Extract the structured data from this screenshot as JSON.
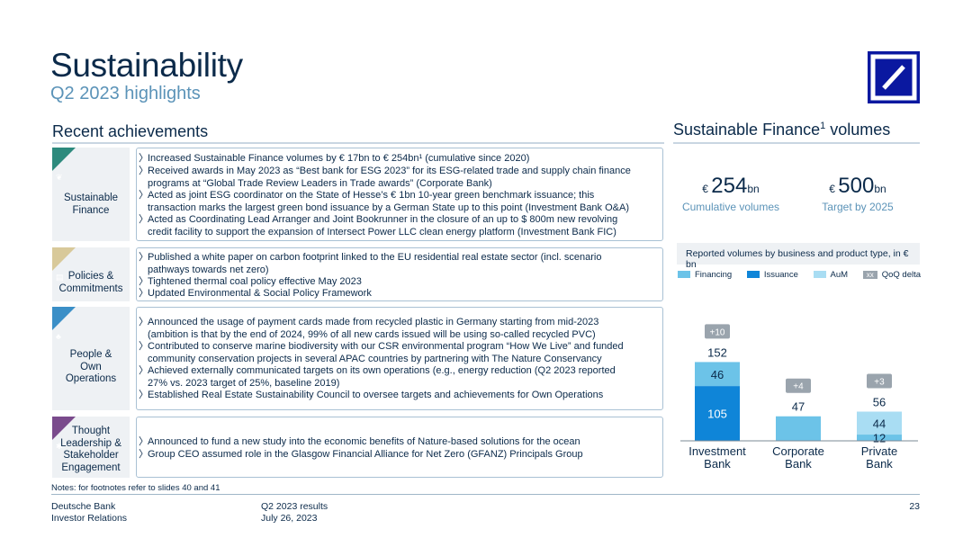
{
  "header": {
    "title": "Sustainability",
    "subtitle": "Q2 2023 highlights"
  },
  "left": {
    "heading": "Recent achievements",
    "sections": [
      {
        "category": [
          "Sustainable",
          "Finance"
        ],
        "icon": "leaf-icon",
        "color": "#2d8a7d",
        "bullets": [
          [
            "Increased Sustainable Finance volumes by € 17bn to € 254bn¹ (cumulative since 2020)"
          ],
          [
            "Received awards in May 2023 as “Best bank for ESG 2023” for its ESG-related trade and supply chain finance",
            "programs at “Global Trade Review Leaders in Trade awards” (Corporate Bank)"
          ],
          [
            "Acted as joint ESG coordinator on the State of Hesse’s € 1bn 10-year green benchmark issuance; this",
            "transaction marks the largest green bond issuance by a German State up to this point (Investment Bank O&A)"
          ],
          [
            "Acted as Coordinating Lead Arranger and Joint Bookrunner in the closure of an up to $ 800m new revolving",
            "credit facility to support the expansion of Intersect Power LLC clean energy platform (Investment Bank FIC)"
          ]
        ]
      },
      {
        "category": [
          "Policies &",
          "Commitments"
        ],
        "icon": "document-icon",
        "color": "#d8c99a",
        "bullets": [
          [
            "Published a white paper on carbon footprint linked to the EU residential real estate sector (incl. scenario",
            "pathways towards net zero)"
          ],
          [
            "Tightened thermal coal policy effective May 2023"
          ],
          [
            "Updated Environmental & Social Policy Framework"
          ]
        ]
      },
      {
        "category": [
          "People &",
          "Own",
          "Operations"
        ],
        "icon": "people-icon",
        "color": "#3b8fc7",
        "bullets": [
          [
            "Announced the usage of payment cards made from recycled plastic in Germany starting from mid-2023",
            "(ambition is that by the end of 2024, 99% of all new cards issued will be using so-called recycled PVC)"
          ],
          [
            "Contributed to conserve marine biodiversity with our CSR environmental program “How We Live” and funded",
            "community conservation projects in several APAC countries by partnering with The Nature Conservancy"
          ],
          [
            "Achieved externally communicated targets on its own operations (e.g., energy reduction (Q2 2023 reported",
            "27% vs. 2023 target of 25%, baseline 2019)"
          ],
          [
            "Established Real Estate Sustainability Council to oversee targets and achievements for Own Operations"
          ]
        ]
      },
      {
        "category": [
          "Thought",
          "Leadership &",
          "Stakeholder",
          "Engagement"
        ],
        "icon": "lightbulb-icon",
        "color": "#7a4b8c",
        "bullets": [
          [
            "Announced to fund a new study into the economic benefits of Nature-based solutions for the ocean"
          ],
          [
            "Group CEO assumed role in the Glasgow Financial Alliance for Net Zero (GFANZ) Principals Group"
          ]
        ]
      }
    ]
  },
  "right": {
    "heading": "Sustainable Finance",
    "heading_sup": "1",
    "heading_tail": " volumes",
    "kpis": [
      {
        "currency": "€ ",
        "value": "254",
        "unit": "bn",
        "label": "Cumulative volumes"
      },
      {
        "currency": "€ ",
        "value": "500",
        "unit": "bn",
        "label": "Target by 2025"
      }
    ],
    "chart_header": "Reported volumes by business and product type, in € bn",
    "legend": [
      {
        "name": "Financing",
        "color": "#6cc3e8"
      },
      {
        "name": "Issuance",
        "color": "#0f85d8"
      },
      {
        "name": "AuM",
        "color": "#a9ddf3"
      },
      {
        "name": "QoQ delta",
        "color": "#9aa4ad",
        "swatch_text": "xx"
      }
    ]
  },
  "chart_data": {
    "type": "bar",
    "stacked": true,
    "categories": [
      "Investment Bank",
      "Corporate Bank",
      "Private Bank"
    ],
    "series": [
      {
        "name": "Issuance",
        "values": [
          105,
          0,
          0
        ],
        "color": "#0f85d8"
      },
      {
        "name": "Financing",
        "values": [
          46,
          47,
          12
        ],
        "color": "#6cc3e8"
      },
      {
        "name": "AuM",
        "values": [
          0,
          0,
          44
        ],
        "color": "#a9ddf3"
      }
    ],
    "segment_labels": [
      {
        "category": 0,
        "series": 0,
        "text": "105"
      },
      {
        "category": 0,
        "series": 1,
        "text": "46"
      },
      {
        "category": 2,
        "series": 1,
        "text": "12"
      },
      {
        "category": 2,
        "series": 2,
        "text": "44"
      }
    ],
    "totals": [
      "152",
      "47",
      "56"
    ],
    "qoq_delta": [
      "+10",
      "+4",
      "+3"
    ],
    "ylim": [
      0,
      160
    ]
  },
  "footer": {
    "note": "Notes: for footnotes refer to slides 40 and 41",
    "company": [
      "Deutsche Bank",
      "Investor Relations"
    ],
    "report": [
      "Q2 2023 results",
      "July 26, 2023"
    ],
    "page": "23"
  }
}
